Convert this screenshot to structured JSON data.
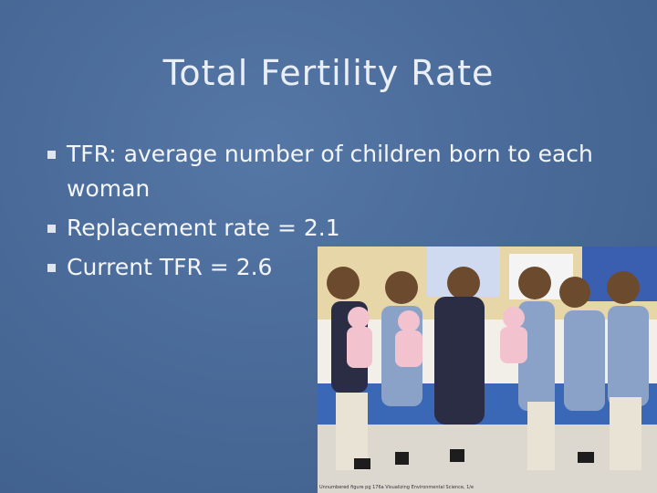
{
  "title": "Total Fertility Rate",
  "bullets": [
    "TFR:  average number of children born to each woman",
    "Replacement rate = 2.1",
    "Current TFR = 2.6"
  ],
  "photo": {
    "caption": "Unnumbered figure pg 176a Visualizing Environmental Science, 1/e"
  }
}
